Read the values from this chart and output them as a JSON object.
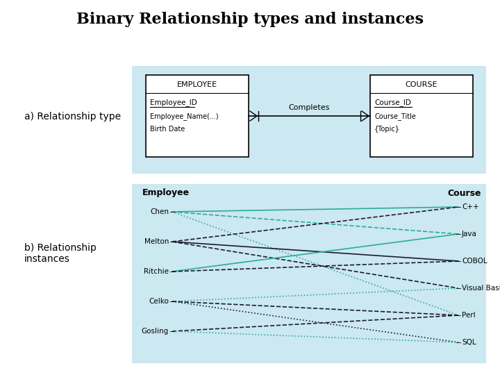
{
  "title": "Binary Relationship types and instances",
  "title_fontsize": 16,
  "background_color": "#ffffff",
  "light_blue": "#cce8f0",
  "panel_a_label": "a) Relationship type",
  "panel_b_label": "b) Relationship\ninstances",
  "employee_box": {
    "title": "EMPLOYEE",
    "attrs": [
      "Employee_ID",
      "Employee_Name(...)",
      "Birth Date"
    ]
  },
  "course_box": {
    "title": "COURSE",
    "attrs": [
      "Course_ID",
      "Course_Title",
      "{Topic}"
    ]
  },
  "relationship_label": "Completes",
  "employees": [
    "Chen",
    "Melton",
    "Ritchie",
    "Celko",
    "Gosling"
  ],
  "courses": [
    "C++",
    "Java",
    "COBOL",
    "Visual Basic",
    "Perl",
    "SQL"
  ],
  "connections": [
    {
      "emp": 0,
      "course": 0,
      "style": "solid",
      "color": "#2aab9e"
    },
    {
      "emp": 0,
      "course": 1,
      "style": "dashed",
      "color": "#2aab9e"
    },
    {
      "emp": 0,
      "course": 4,
      "style": "dotted",
      "color": "#2aab9e"
    },
    {
      "emp": 1,
      "course": 0,
      "style": "dashed",
      "color": "#1a1a2e"
    },
    {
      "emp": 1,
      "course": 2,
      "style": "solid",
      "color": "#1a1a2e"
    },
    {
      "emp": 1,
      "course": 3,
      "style": "dashed",
      "color": "#1a1a2e"
    },
    {
      "emp": 2,
      "course": 1,
      "style": "solid",
      "color": "#2aab9e"
    },
    {
      "emp": 2,
      "course": 2,
      "style": "dashed",
      "color": "#1a1a2e"
    },
    {
      "emp": 3,
      "course": 3,
      "style": "dotted",
      "color": "#2aab9e"
    },
    {
      "emp": 3,
      "course": 4,
      "style": "dashed",
      "color": "#1a1a2e"
    },
    {
      "emp": 3,
      "course": 5,
      "style": "dotted",
      "color": "#1a1a2e"
    },
    {
      "emp": 4,
      "course": 4,
      "style": "dashed",
      "color": "#1a1a2e"
    },
    {
      "emp": 4,
      "course": 5,
      "style": "dotted",
      "color": "#2aab9e"
    }
  ]
}
